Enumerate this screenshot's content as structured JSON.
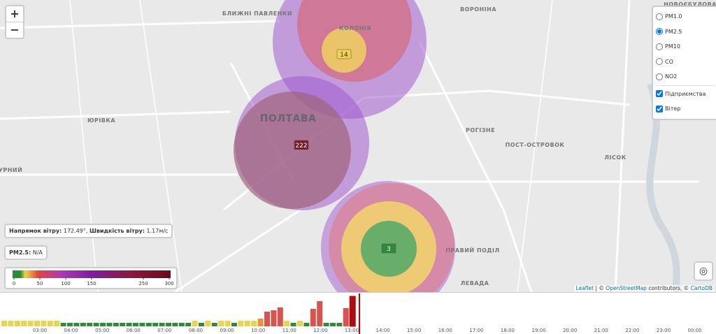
{
  "map": {
    "zoom_in": "+",
    "zoom_out": "−",
    "labels": [
      "БЛИЖНІ ПАВЛЕНКИ",
      "КОЛОНІЯ",
      "ВОРОНІНА",
      "НОВОЄБУЛОВА",
      "ПОЛТАВА",
      "ЮРІВКА",
      "РОГІЗНЕ",
      "ПОСТ-ОСТРОВОК",
      "ЛІСОК",
      "УРНИЙ",
      "ПРАВИЙ ПОДІЛ",
      "ЛЕВАДА"
    ],
    "markers": [
      14,
      222,
      3
    ]
  },
  "layers": {
    "pollutants": [
      "PM1.0",
      "PM2.5",
      "PM10",
      "CO",
      "NO2"
    ],
    "selected_index": 1,
    "overlays": [
      {
        "label": "Підприємства",
        "checked": true
      },
      {
        "label": "Вітер",
        "checked": true
      }
    ]
  },
  "wind_info": {
    "direction_label": "Напрямок вітру:",
    "direction": "172.49°,",
    "speed_label": "Швидкість вітру:",
    "speed": "1.17м/с"
  },
  "pm_info": {
    "label": "PM2.5:",
    "value": "N/A"
  },
  "legend": {
    "ticks": [
      0,
      50,
      100,
      150,
      250,
      300
    ]
  },
  "attribution": {
    "leaflet": "Leaflet",
    "sep": "| ©",
    "osm": "OpenStreetMap",
    "mid": "contributors, ©",
    "carto": "CartoDB"
  },
  "timeline": {
    "hours": [
      "03:00",
      "04:00",
      "05:00",
      "06:00",
      "07:00",
      "08:00",
      "09:00",
      "10:00",
      "11:00",
      "12:00",
      "13:00",
      "14:00",
      "15:00",
      "16:00",
      "17:00",
      "18:00",
      "19:00",
      "20:00",
      "21:00",
      "22:00",
      "23:00",
      "00:00"
    ],
    "values": [
      16,
      16,
      16,
      16,
      16,
      16,
      16,
      16,
      16,
      10,
      10,
      10,
      10,
      10,
      10,
      10,
      10,
      10,
      10,
      10,
      10,
      10,
      10,
      10,
      10,
      10,
      10,
      10,
      10,
      16,
      10,
      16,
      10,
      16,
      16,
      10,
      16,
      16,
      16,
      22,
      42,
      46,
      54,
      16,
      10,
      16,
      10,
      50,
      72,
      10,
      10,
      10,
      52,
      86
    ]
  }
}
